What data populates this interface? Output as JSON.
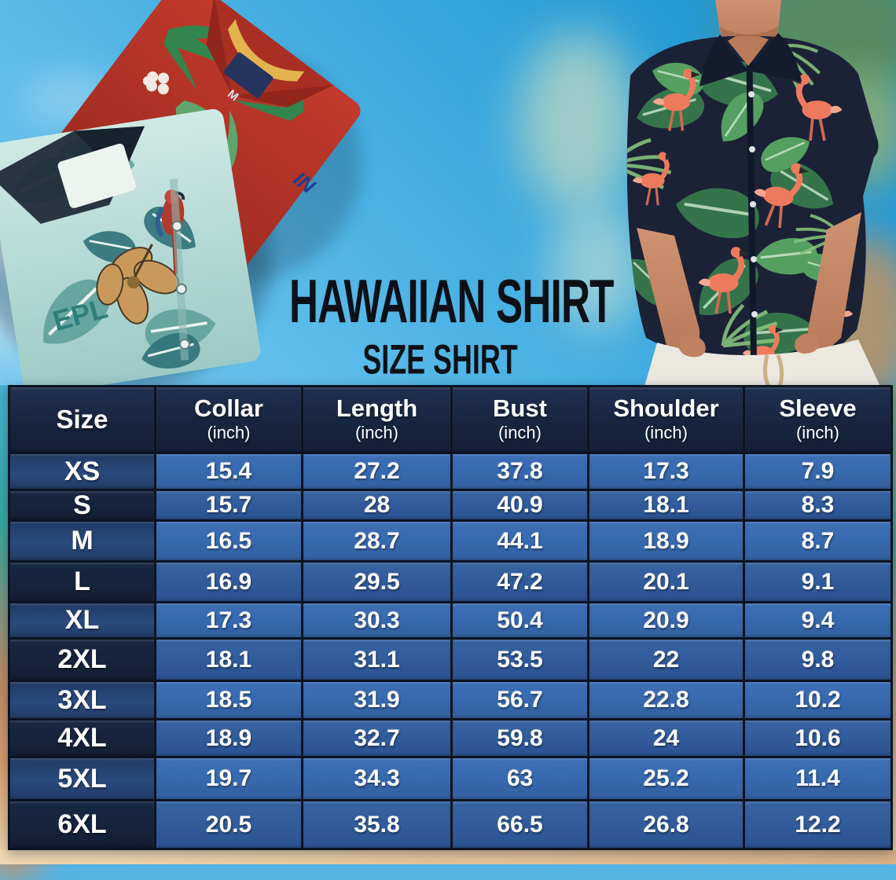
{
  "title": {
    "main": "HAWAIIAN SHIRT",
    "sub": "SIZE SHIRT"
  },
  "chart_data": {
    "type": "table",
    "title": "Hawaiian Shirt Size Shirt",
    "columns": [
      {
        "label": "Size",
        "unit": ""
      },
      {
        "label": "Collar",
        "unit": "(inch)"
      },
      {
        "label": "Length",
        "unit": "(inch)"
      },
      {
        "label": "Bust",
        "unit": "(inch)"
      },
      {
        "label": "Shoulder",
        "unit": "(inch)"
      },
      {
        "label": "Sleeve",
        "unit": "(inch)"
      }
    ],
    "value_keys": [
      "collar",
      "length",
      "bust",
      "shoulder",
      "sleeve"
    ],
    "rows": [
      {
        "size": "XS",
        "collar": "15.4",
        "length": "27.2",
        "bust": "37.8",
        "shoulder": "17.3",
        "sleeve": "7.9"
      },
      {
        "size": "S",
        "collar": "15.7",
        "length": "28",
        "bust": "40.9",
        "shoulder": "18.1",
        "sleeve": "8.3"
      },
      {
        "size": "M",
        "collar": "16.5",
        "length": "28.7",
        "bust": "44.1",
        "shoulder": "18.9",
        "sleeve": "8.7"
      },
      {
        "size": "L",
        "collar": "16.9",
        "length": "29.5",
        "bust": "47.2",
        "shoulder": "20.1",
        "sleeve": "9.1"
      },
      {
        "size": "XL",
        "collar": "17.3",
        "length": "30.3",
        "bust": "50.4",
        "shoulder": "20.9",
        "sleeve": "9.4"
      },
      {
        "size": "2XL",
        "collar": "18.1",
        "length": "31.1",
        "bust": "53.5",
        "shoulder": "22",
        "sleeve": "9.8"
      },
      {
        "size": "3XL",
        "collar": "18.5",
        "length": "31.9",
        "bust": "56.7",
        "shoulder": "22.8",
        "sleeve": "10.2"
      },
      {
        "size": "4XL",
        "collar": "18.9",
        "length": "32.7",
        "bust": "59.8",
        "shoulder": "24",
        "sleeve": "10.6"
      },
      {
        "size": "5XL",
        "collar": "19.7",
        "length": "34.3",
        "bust": "63",
        "shoulder": "25.2",
        "sleeve": "11.4"
      },
      {
        "size": "6XL",
        "collar": "20.5",
        "length": "35.8",
        "bust": "66.5",
        "shoulder": "26.8",
        "sleeve": "12.2"
      }
    ]
  },
  "photo_texts": {
    "teal_shirt_print": "EPL",
    "red_shirt_tag": "M",
    "red_shirt_logo": "IN"
  },
  "colors": {
    "table_border": "#0b1322",
    "header_bg": "#16243e",
    "size_cell_odd": "#2a4a7e",
    "size_cell_even": "#15233c",
    "value_cell_odd": "#376ab0",
    "value_cell_even": "#325c9c",
    "table_text": "#ffffff",
    "title_text": "#0d1117",
    "sky_top": "#1b8fce",
    "sky_bottom": "#a3daf5",
    "sand": "#e0bd90",
    "red_shirt": "#b5322a",
    "teal_shirt": "#b9dcd8",
    "model_shirt_navy": "#1b2236",
    "flamingo": "#ee7a5e",
    "leaf_green": "#3f8a55"
  }
}
